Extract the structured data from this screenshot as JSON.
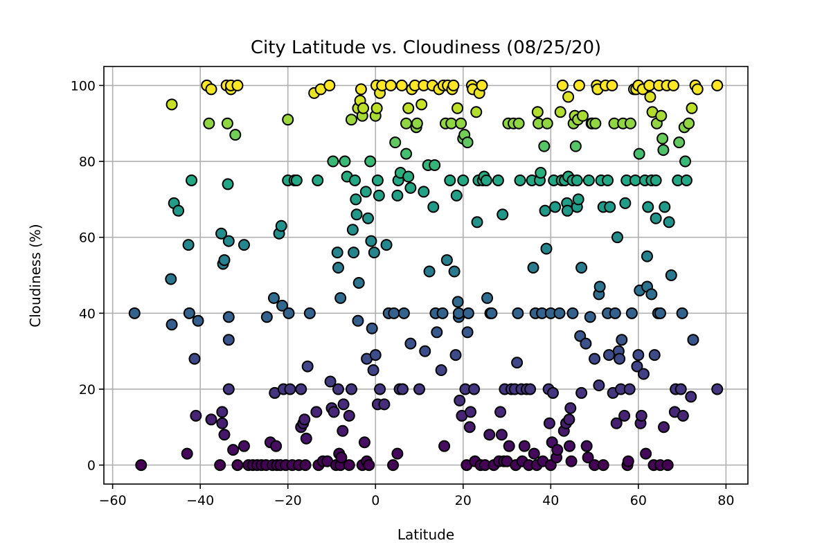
{
  "chart_data": {
    "type": "scatter",
    "title": "City Latitude vs. Cloudiness (08/25/20)",
    "xlabel": "Latitude",
    "ylabel": "Cloudiness (%)",
    "xlim": [
      -62,
      85
    ],
    "ylim": [
      -5,
      105
    ],
    "xticks": [
      -60,
      -40,
      -20,
      0,
      20,
      40,
      60,
      80
    ],
    "xtick_labels": [
      "−60",
      "−40",
      "−20",
      "0",
      "20",
      "40",
      "60",
      "80"
    ],
    "yticks": [
      0,
      20,
      40,
      60,
      80,
      100
    ],
    "ytick_labels": [
      "0",
      "20",
      "40",
      "60",
      "80",
      "100"
    ],
    "grid": true,
    "colormap": "viridis (by cloudiness)",
    "marker_edge_color": "#000000",
    "points": [
      [
        -55,
        40
      ],
      [
        -53.5,
        0
      ],
      [
        -46.5,
        95
      ],
      [
        -46.5,
        37
      ],
      [
        -46.7,
        49
      ],
      [
        -46,
        69
      ],
      [
        -45,
        67
      ],
      [
        -43,
        3
      ],
      [
        -42.5,
        40
      ],
      [
        -42.7,
        58
      ],
      [
        -42,
        75
      ],
      [
        -41.3,
        28
      ],
      [
        -41,
        13
      ],
      [
        -40.5,
        38
      ],
      [
        -38.5,
        100
      ],
      [
        -38,
        90
      ],
      [
        -37.5,
        99
      ],
      [
        -37.5,
        12
      ],
      [
        -35.5,
        0
      ],
      [
        -35.2,
        61
      ],
      [
        -35,
        14
      ],
      [
        -35,
        11
      ],
      [
        -34.8,
        53
      ],
      [
        -34.5,
        54
      ],
      [
        -34.5,
        8
      ],
      [
        -34,
        100
      ],
      [
        -33.8,
        90
      ],
      [
        -33.7,
        74
      ],
      [
        -33.5,
        59
      ],
      [
        -33.5,
        39
      ],
      [
        -33.5,
        33
      ],
      [
        -33.5,
        20
      ],
      [
        -33,
        99
      ],
      [
        -33,
        100
      ],
      [
        -32.5,
        4
      ],
      [
        -32,
        87
      ],
      [
        -31.5,
        100
      ],
      [
        -31.5,
        0
      ],
      [
        -30,
        58
      ],
      [
        -30,
        5
      ],
      [
        -29,
        0
      ],
      [
        -28,
        0
      ],
      [
        -27,
        0
      ],
      [
        -26,
        0
      ],
      [
        -25,
        0
      ],
      [
        -24.8,
        39
      ],
      [
        -24,
        6
      ],
      [
        -23.5,
        0
      ],
      [
        -23.2,
        44
      ],
      [
        -23,
        19
      ],
      [
        -22.7,
        5
      ],
      [
        -22.5,
        0
      ],
      [
        -22,
        61
      ],
      [
        -21.7,
        0
      ],
      [
        -21.5,
        63
      ],
      [
        -21.3,
        42
      ],
      [
        -21,
        20
      ],
      [
        -20.5,
        0
      ],
      [
        -20,
        91
      ],
      [
        -20,
        75
      ],
      [
        -19.8,
        40
      ],
      [
        -19.5,
        20
      ],
      [
        -19,
        0
      ],
      [
        -18.5,
        75
      ],
      [
        -18,
        75
      ],
      [
        -17.5,
        0
      ],
      [
        -17,
        20
      ],
      [
        -17,
        10
      ],
      [
        -16.5,
        11
      ],
      [
        -16.2,
        12
      ],
      [
        -16,
        0
      ],
      [
        -15.8,
        7
      ],
      [
        -15.5,
        26
      ],
      [
        -15,
        40
      ],
      [
        -14,
        98
      ],
      [
        -13.5,
        14
      ],
      [
        -13.2,
        75
      ],
      [
        -13,
        0
      ],
      [
        -12.5,
        99
      ],
      [
        -12,
        1
      ],
      [
        -11,
        1
      ],
      [
        -10.5,
        100
      ],
      [
        -10.3,
        22
      ],
      [
        -10,
        15
      ],
      [
        -9.7,
        80
      ],
      [
        -9.5,
        14
      ],
      [
        -9,
        0
      ],
      [
        -8.7,
        56
      ],
      [
        -8.5,
        20
      ],
      [
        -8.5,
        52
      ],
      [
        -8.3,
        3
      ],
      [
        -8,
        44
      ],
      [
        -8,
        0
      ],
      [
        -7.8,
        2
      ],
      [
        -7.5,
        9
      ],
      [
        -7.3,
        16
      ],
      [
        -7,
        80
      ],
      [
        -6.5,
        76
      ],
      [
        -6,
        0
      ],
      [
        -6,
        13
      ],
      [
        -5.5,
        20
      ],
      [
        -5.5,
        91
      ],
      [
        -5.2,
        62
      ],
      [
        -5,
        56
      ],
      [
        -4.7,
        75
      ],
      [
        -4.5,
        70
      ],
      [
        -4.3,
        66
      ],
      [
        -4,
        38
      ],
      [
        -4,
        94
      ],
      [
        -3.8,
        48
      ],
      [
        -3.5,
        96
      ],
      [
        -3.3,
        99
      ],
      [
        -3,
        0
      ],
      [
        -3,
        92
      ],
      [
        -2.8,
        94
      ],
      [
        -2.5,
        6
      ],
      [
        -2.2,
        72
      ],
      [
        -2,
        1
      ],
      [
        -2,
        28
      ],
      [
        -1.7,
        65
      ],
      [
        -1.5,
        0
      ],
      [
        -1.2,
        80
      ],
      [
        -1,
        59
      ],
      [
        -0.8,
        36
      ],
      [
        -0.5,
        25
      ],
      [
        -0.3,
        56
      ],
      [
        0,
        29
      ],
      [
        0,
        92
      ],
      [
        0.2,
        100
      ],
      [
        0.3,
        94
      ],
      [
        0.5,
        75
      ],
      [
        0.5,
        16
      ],
      [
        0.8,
        71
      ],
      [
        1,
        20
      ],
      [
        1,
        98
      ],
      [
        1.5,
        100
      ],
      [
        2,
        16
      ],
      [
        2.5,
        58
      ],
      [
        3,
        40
      ],
      [
        3.5,
        100
      ],
      [
        4,
        0
      ],
      [
        4.2,
        40
      ],
      [
        4.5,
        85
      ],
      [
        5,
        3
      ],
      [
        5,
        71
      ],
      [
        5.2,
        75
      ],
      [
        5.5,
        20
      ],
      [
        5.7,
        77
      ],
      [
        6,
        100
      ],
      [
        6.2,
        20
      ],
      [
        6.5,
        40
      ],
      [
        7,
        90
      ],
      [
        7,
        82
      ],
      [
        7.5,
        94
      ],
      [
        7.5,
        76
      ],
      [
        8,
        32
      ],
      [
        8,
        73
      ],
      [
        8.3,
        99
      ],
      [
        9,
        100
      ],
      [
        9.3,
        89
      ],
      [
        9.5,
        90
      ],
      [
        10,
        20
      ],
      [
        10.5,
        95
      ],
      [
        11,
        72
      ],
      [
        11,
        100
      ],
      [
        11.3,
        30
      ],
      [
        12,
        79
      ],
      [
        12.3,
        51
      ],
      [
        13,
        100
      ],
      [
        13.2,
        68
      ],
      [
        13.5,
        79
      ],
      [
        13.7,
        40
      ],
      [
        14,
        35
      ],
      [
        14.5,
        99
      ],
      [
        15,
        25
      ],
      [
        15.3,
        40
      ],
      [
        15.5,
        100
      ],
      [
        15.7,
        5
      ],
      [
        16,
        90
      ],
      [
        16.3,
        54
      ],
      [
        16.5,
        100
      ],
      [
        17,
        75
      ],
      [
        17.3,
        90
      ],
      [
        17.5,
        99
      ],
      [
        17.8,
        100
      ],
      [
        18,
        51
      ],
      [
        18.3,
        29
      ],
      [
        18.5,
        71
      ],
      [
        18.7,
        94
      ],
      [
        18.8,
        43
      ],
      [
        19,
        39
      ],
      [
        19,
        40
      ],
      [
        19.2,
        17
      ],
      [
        19.5,
        90
      ],
      [
        19.7,
        13
      ],
      [
        20,
        86
      ],
      [
        20,
        75
      ],
      [
        20.3,
        87
      ],
      [
        20.5,
        20
      ],
      [
        20.8,
        0
      ],
      [
        21,
        35
      ],
      [
        21,
        85
      ],
      [
        21.2,
        40
      ],
      [
        21.5,
        10
      ],
      [
        21.7,
        14
      ],
      [
        22,
        100
      ],
      [
        22.2,
        99
      ],
      [
        22.5,
        20
      ],
      [
        22.7,
        1
      ],
      [
        23,
        93
      ],
      [
        23.2,
        64
      ],
      [
        23.5,
        75
      ],
      [
        23.7,
        98
      ],
      [
        24,
        0
      ],
      [
        24.3,
        100
      ],
      [
        24.5,
        75
      ],
      [
        24.8,
        76
      ],
      [
        25,
        0
      ],
      [
        25.3,
        75
      ],
      [
        25.5,
        44
      ],
      [
        26,
        8
      ],
      [
        26.2,
        40
      ],
      [
        26.5,
        40
      ],
      [
        27,
        0
      ],
      [
        28,
        75
      ],
      [
        28.2,
        1
      ],
      [
        28.5,
        14
      ],
      [
        28.8,
        8
      ],
      [
        29,
        66
      ],
      [
        29.3,
        1
      ],
      [
        29.5,
        20
      ],
      [
        30,
        1
      ],
      [
        30.3,
        90
      ],
      [
        30.5,
        5
      ],
      [
        31,
        20
      ],
      [
        31.5,
        90
      ],
      [
        31.8,
        20
      ],
      [
        32,
        0
      ],
      [
        32.3,
        27
      ],
      [
        32.5,
        40
      ],
      [
        32.7,
        90
      ],
      [
        33,
        75
      ],
      [
        33.3,
        20
      ],
      [
        33.5,
        1
      ],
      [
        34,
        5
      ],
      [
        34.5,
        20
      ],
      [
        35,
        0
      ],
      [
        35.3,
        20
      ],
      [
        35.7,
        75
      ],
      [
        36,
        52
      ],
      [
        36.2,
        3
      ],
      [
        36.5,
        40
      ],
      [
        36.8,
        0
      ],
      [
        37,
        93
      ],
      [
        37.2,
        90
      ],
      [
        37.5,
        75
      ],
      [
        37.7,
        77
      ],
      [
        38,
        40
      ],
      [
        38.2,
        1
      ],
      [
        38.5,
        84
      ],
      [
        38.7,
        67
      ],
      [
        39,
        57
      ],
      [
        39.2,
        90
      ],
      [
        39.5,
        20
      ],
      [
        39.7,
        11
      ],
      [
        40,
        40
      ],
      [
        40,
        0
      ],
      [
        40.3,
        6
      ],
      [
        40.5,
        19
      ],
      [
        40.7,
        75
      ],
      [
        41,
        68
      ],
      [
        41.3,
        2
      ],
      [
        41.5,
        4
      ],
      [
        42,
        40
      ],
      [
        42.2,
        93
      ],
      [
        42.5,
        75
      ],
      [
        42.7,
        100
      ],
      [
        43,
        9
      ],
      [
        43.2,
        75
      ],
      [
        43.5,
        11
      ],
      [
        43.7,
        69
      ],
      [
        43.8,
        67
      ],
      [
        44,
        76
      ],
      [
        44,
        97
      ],
      [
        44.2,
        12
      ],
      [
        44.3,
        5
      ],
      [
        44.5,
        15
      ],
      [
        44.7,
        1
      ],
      [
        45,
        75
      ],
      [
        45,
        40
      ],
      [
        45.2,
        90
      ],
      [
        45.5,
        92
      ],
      [
        45.7,
        84
      ],
      [
        46,
        75
      ],
      [
        46,
        68
      ],
      [
        46.2,
        91
      ],
      [
        46.3,
        70
      ],
      [
        46.5,
        100
      ],
      [
        46.7,
        34
      ],
      [
        47,
        52
      ],
      [
        47,
        19
      ],
      [
        47.3,
        92
      ],
      [
        48,
        32
      ],
      [
        48.2,
        5
      ],
      [
        48.5,
        2
      ],
      [
        48.7,
        75
      ],
      [
        49,
        39
      ],
      [
        49.3,
        90
      ],
      [
        49.5,
        90
      ],
      [
        50,
        28
      ],
      [
        50,
        0
      ],
      [
        50.2,
        90
      ],
      [
        50.5,
        100
      ],
      [
        50.7,
        99
      ],
      [
        51,
        45
      ],
      [
        51,
        21
      ],
      [
        51.2,
        47
      ],
      [
        51.5,
        75
      ],
      [
        52,
        68
      ],
      [
        52,
        0
      ],
      [
        52.5,
        100
      ],
      [
        53,
        40
      ],
      [
        53,
        75
      ],
      [
        53.3,
        29
      ],
      [
        53.5,
        68
      ],
      [
        54,
        100
      ],
      [
        54.2,
        19
      ],
      [
        54.5,
        90
      ],
      [
        54.7,
        40
      ],
      [
        55,
        11
      ],
      [
        55.2,
        60
      ],
      [
        55.5,
        30
      ],
      [
        55.7,
        28
      ],
      [
        56,
        20
      ],
      [
        56.2,
        33
      ],
      [
        56.5,
        90
      ],
      [
        56.8,
        13
      ],
      [
        57,
        69
      ],
      [
        57.3,
        75
      ],
      [
        57.5,
        0
      ],
      [
        57.7,
        1
      ],
      [
        58,
        20
      ],
      [
        58.2,
        90
      ],
      [
        58.5,
        40
      ],
      [
        59,
        99
      ],
      [
        59.3,
        75
      ],
      [
        59.5,
        99
      ],
      [
        59.7,
        26
      ],
      [
        60,
        29
      ],
      [
        60,
        100
      ],
      [
        60.2,
        82
      ],
      [
        60.3,
        46
      ],
      [
        60.5,
        11
      ],
      [
        60.7,
        13
      ],
      [
        61,
        99
      ],
      [
        61.2,
        24
      ],
      [
        61.5,
        75
      ],
      [
        61.7,
        3
      ],
      [
        62,
        47
      ],
      [
        62,
        55
      ],
      [
        62.2,
        68
      ],
      [
        62.5,
        100
      ],
      [
        62.7,
        97
      ],
      [
        63,
        45
      ],
      [
        63,
        75
      ],
      [
        63.2,
        93
      ],
      [
        63.5,
        0
      ],
      [
        63.7,
        29
      ],
      [
        64,
        65
      ],
      [
        64,
        75
      ],
      [
        64.2,
        90
      ],
      [
        64.5,
        40
      ],
      [
        64.7,
        100
      ],
      [
        65,
        40
      ],
      [
        65,
        0
      ],
      [
        65.2,
        92
      ],
      [
        65.5,
        86
      ],
      [
        65.7,
        83
      ],
      [
        65.8,
        10
      ],
      [
        66,
        68
      ],
      [
        66.5,
        100
      ],
      [
        66.7,
        0
      ],
      [
        67,
        64
      ],
      [
        67.5,
        50
      ],
      [
        68,
        100
      ],
      [
        68.3,
        14
      ],
      [
        68.5,
        20
      ],
      [
        69,
        75
      ],
      [
        69.3,
        85
      ],
      [
        69.7,
        20
      ],
      [
        70,
        40
      ],
      [
        70.2,
        13
      ],
      [
        70.5,
        89
      ],
      [
        70.7,
        80
      ],
      [
        71,
        75
      ],
      [
        71.5,
        90
      ],
      [
        72,
        18
      ],
      [
        72.2,
        94
      ],
      [
        72.5,
        33
      ],
      [
        73,
        100
      ],
      [
        73.5,
        99
      ],
      [
        78,
        100
      ],
      [
        78,
        20
      ]
    ]
  }
}
